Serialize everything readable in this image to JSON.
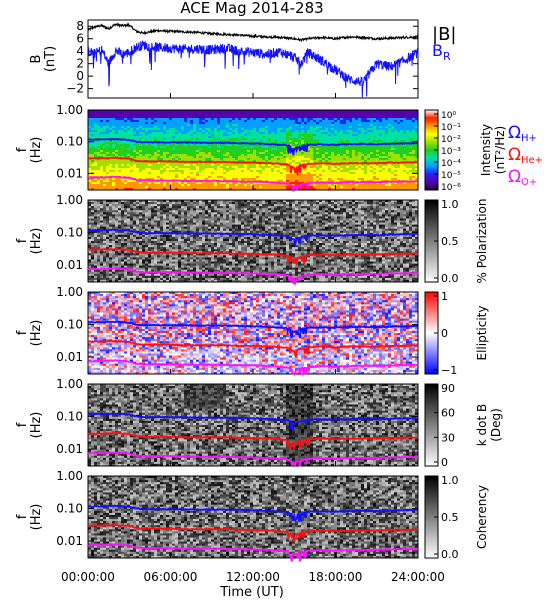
{
  "title": "ACE Mag 2014-283",
  "xlabel": "Time (UT)",
  "xticks": [
    "00:00:00",
    "06:00:00",
    "12:00:00",
    "18:00:00",
    "24:00:00"
  ],
  "freq_ticks": [
    "1.00",
    "0.10",
    "0.01"
  ],
  "panel_ylabel": {
    "f": "f",
    "unit": "(Hz)"
  },
  "colors": {
    "black": "#000000",
    "blue": "#1010ff",
    "red": "#ff1010",
    "magenta": "#ff10ff"
  },
  "chart_data": [
    {
      "type": "line",
      "name": "B field",
      "ylabel": "B",
      "yunit": "(nT)",
      "ylim": [
        -3.5,
        9
      ],
      "yticks": [
        -2,
        0,
        2,
        4,
        6,
        8
      ],
      "xlim": [
        0,
        24
      ],
      "legend": [
        "|B|",
        "B_R"
      ],
      "series": [
        {
          "name": "|B|",
          "color": "#000000",
          "x": [
            0,
            0.5,
            1,
            1.5,
            2,
            2.5,
            3,
            3.5,
            4,
            5,
            6,
            7,
            8,
            9,
            10,
            11,
            12,
            13,
            14,
            15,
            15.5,
            16,
            17,
            18,
            19,
            20,
            21,
            22,
            23,
            24
          ],
          "values": [
            7.4,
            7.9,
            8.1,
            7.6,
            8.3,
            8.1,
            8.2,
            7.2,
            6.9,
            7.3,
            7.2,
            7.1,
            7.0,
            6.8,
            6.7,
            6.6,
            6.4,
            6.3,
            6.2,
            6.0,
            5.8,
            6.0,
            6.2,
            6.0,
            6.3,
            6.2,
            6.0,
            6.1,
            6.2,
            6.3
          ]
        },
        {
          "name": "B_R",
          "color": "#1010ff",
          "x": [
            0,
            0.5,
            1,
            1.5,
            2,
            2.5,
            3,
            3.5,
            4,
            5,
            6,
            7,
            8,
            9,
            10,
            11,
            12,
            13,
            14,
            15,
            15.5,
            16,
            17,
            18,
            19,
            20,
            21,
            22,
            23,
            24
          ],
          "values": [
            4.0,
            3.6,
            4.2,
            2.0,
            4.1,
            3.5,
            3.8,
            4.6,
            5.0,
            4.6,
            4.5,
            4.3,
            4.4,
            4.2,
            4.5,
            4.0,
            3.8,
            3.5,
            3.9,
            3.0,
            2.0,
            3.8,
            2.5,
            1.0,
            -0.5,
            -1.0,
            2.0,
            1.5,
            2.5,
            3.8
          ]
        }
      ]
    },
    {
      "type": "heatmap",
      "name": "Intensity",
      "ylabel": "f (Hz)",
      "yscale": "log",
      "ylim": [
        0.003,
        1.0
      ],
      "colorbar": {
        "label": "Intensity",
        "unit": "(nT²/Hz)",
        "ticks": [
          "10⁰",
          "10⁻¹",
          "10⁻²",
          "10⁻³",
          "10⁻⁴",
          "10⁻⁵",
          "10⁻⁶"
        ],
        "range": [
          1e-06,
          1
        ],
        "scale": "rainbow"
      },
      "legend": [
        {
          "label": "Ω",
          "sub": "H+",
          "color": "#1010ff"
        },
        {
          "label": "Ω",
          "sub": "He+",
          "color": "#ff1010"
        },
        {
          "label": "Ω",
          "sub": "O+",
          "color": "#ff10ff"
        }
      ]
    },
    {
      "type": "heatmap",
      "name": "Polarization",
      "ylabel": "f (Hz)",
      "yscale": "log",
      "ylim": [
        0.003,
        1.0
      ],
      "colorbar": {
        "label": "% Polarization",
        "ticks": [
          "1.0",
          "0.5",
          "0.0"
        ],
        "range": [
          0,
          1
        ],
        "scale": "gray"
      }
    },
    {
      "type": "heatmap",
      "name": "Ellipticity",
      "ylabel": "f (Hz)",
      "yscale": "log",
      "ylim": [
        0.003,
        1.0
      ],
      "colorbar": {
        "label": "Ellipticity",
        "ticks": [
          "1",
          "0",
          "−1"
        ],
        "range": [
          -1,
          1
        ],
        "scale": "bwr"
      }
    },
    {
      "type": "heatmap",
      "name": "k dot B",
      "ylabel": "f (Hz)",
      "yscale": "log",
      "ylim": [
        0.003,
        1.0
      ],
      "colorbar": {
        "label": "k dot B",
        "unit": "(Deg)",
        "ticks": [
          "90",
          "60",
          "30",
          "0"
        ],
        "range": [
          0,
          90
        ],
        "scale": "gray"
      }
    },
    {
      "type": "heatmap",
      "name": "Coherency",
      "ylabel": "f (Hz)",
      "yscale": "log",
      "ylim": [
        0.003,
        1.0
      ],
      "colorbar": {
        "label": "Coherency",
        "ticks": [
          "1.0",
          "0.5",
          "0.0"
        ],
        "range": [
          0,
          1
        ],
        "scale": "gray"
      }
    }
  ],
  "gyro_lines": {
    "x": [
      0,
      1,
      2,
      3,
      3.5,
      4,
      5,
      6,
      7,
      8,
      9,
      10,
      11,
      12,
      13,
      14,
      14.5,
      15,
      15.5,
      16,
      17,
      18,
      19,
      20,
      21,
      22,
      23,
      24
    ],
    "H+": [
      0.115,
      0.118,
      0.12,
      0.115,
      0.1,
      0.095,
      0.096,
      0.095,
      0.094,
      0.093,
      0.092,
      0.092,
      0.09,
      0.088,
      0.085,
      0.08,
      0.078,
      0.06,
      0.072,
      0.08,
      0.082,
      0.08,
      0.083,
      0.085,
      0.083,
      0.086,
      0.088,
      0.09
    ],
    "He+": [
      0.03,
      0.03,
      0.031,
      0.029,
      0.025,
      0.024,
      0.024,
      0.024,
      0.023,
      0.023,
      0.023,
      0.023,
      0.022,
      0.022,
      0.021,
      0.02,
      0.019,
      0.015,
      0.018,
      0.02,
      0.021,
      0.02,
      0.021,
      0.021,
      0.021,
      0.022,
      0.022,
      0.023
    ],
    "O+": [
      0.0075,
      0.0075,
      0.0078,
      0.0073,
      0.0063,
      0.006,
      0.006,
      0.006,
      0.0058,
      0.0058,
      0.0058,
      0.0057,
      0.0056,
      0.0055,
      0.0053,
      0.005,
      0.0048,
      0.0038,
      0.0045,
      0.005,
      0.0052,
      0.005,
      0.0053,
      0.0053,
      0.0053,
      0.0055,
      0.0056,
      0.0057
    ]
  }
}
